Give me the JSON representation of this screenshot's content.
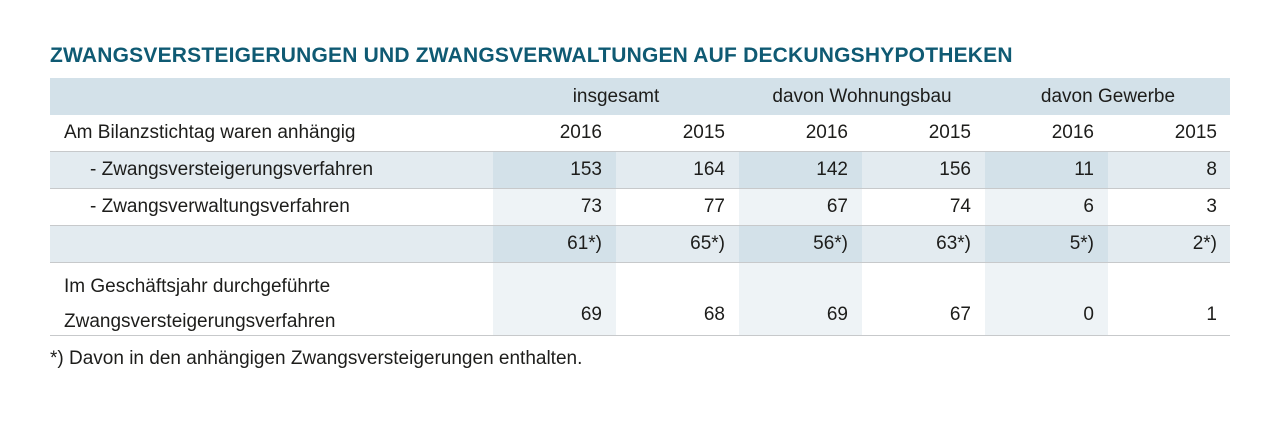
{
  "title": "ZWANGSVERSTEIGERUNGEN UND ZWANGSVERWALTUNGEN AUF DECKUNGSHYPOTHEKEN",
  "groups": [
    "insgesamt",
    "davon Wohnungsbau",
    "davon Gewerbe"
  ],
  "rows": [
    {
      "label": "Am Bilanzstichtag waren anhängig",
      "values": [
        "2016",
        "2015",
        "2016",
        "2015",
        "2016",
        "2015"
      ]
    },
    {
      "label": "- Zwangsversteigerungsverfahren",
      "values": [
        "153",
        "164",
        "142",
        "156",
        "11",
        "8"
      ]
    },
    {
      "label": "- Zwangsverwaltungsverfahren",
      "values": [
        "73",
        "77",
        "67",
        "74",
        "6",
        "3"
      ]
    },
    {
      "label": "",
      "values": [
        "61*)",
        "65*)",
        "56*)",
        "63*)",
        "5*)",
        "2*)"
      ]
    },
    {
      "label_line1": "Im Geschäftsjahr durchgeführte",
      "label_line2": "Zwangsversteigerungsverfahren",
      "values": [
        "69",
        "68",
        "69",
        "67",
        "0",
        "1"
      ]
    }
  ],
  "footnote": "*) Davon in den anhängigen Zwangsversteigerungen enthalten."
}
